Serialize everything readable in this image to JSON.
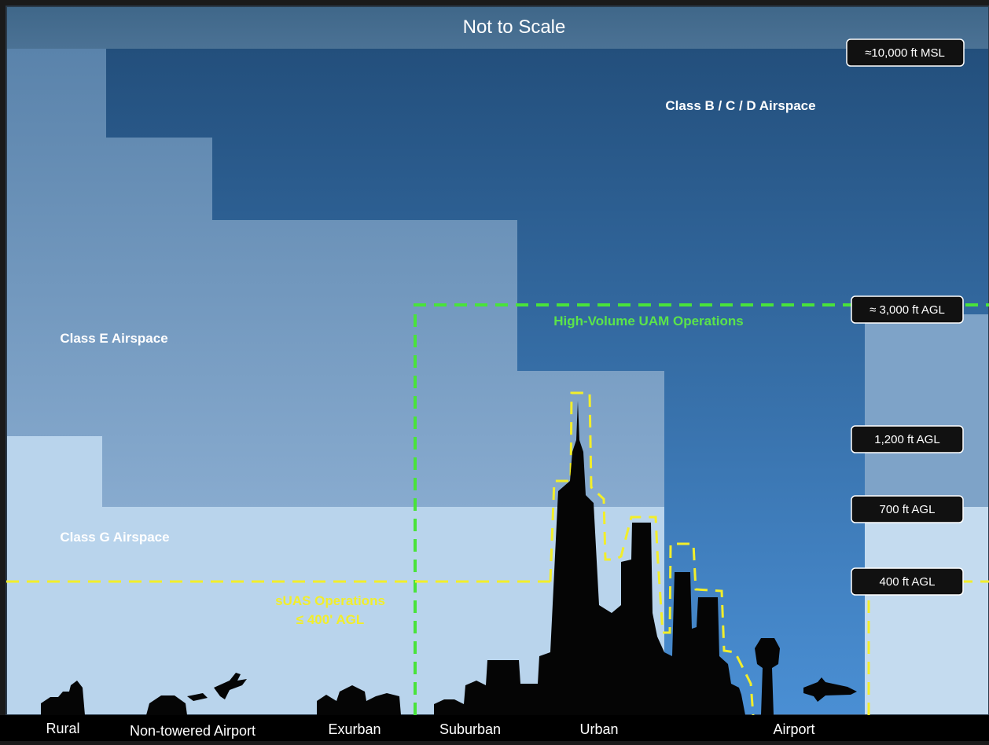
{
  "diagram": {
    "title": "Not to Scale",
    "airspace_labels": {
      "class_bcd": "Class B / C / D Airspace",
      "class_e": "Class E Airspace",
      "class_g": "Class G Airspace"
    },
    "operations": {
      "uam": "High-Volume UAM Operations",
      "suas_line1": "sUAS Operations",
      "suas_line2": "≤ 400' AGL"
    },
    "altitude_labels": [
      "≈10,000 ft MSL",
      "≈ 3,000 ft AGL",
      "1,200 ft AGL",
      "700 ft AGL",
      "400 ft AGL"
    ],
    "ground_labels": [
      "Rural",
      "Non-towered Airport",
      "Exurban",
      "Suburban",
      "Urban",
      "Airport"
    ],
    "colors": {
      "class_bcd": "#2f5f8f",
      "class_e": "#6f97bd",
      "class_g": "#b9d4ec",
      "uam_line": "#49e33a",
      "suas_line": "#f2ee2a",
      "ground_bar": "#000000"
    }
  }
}
